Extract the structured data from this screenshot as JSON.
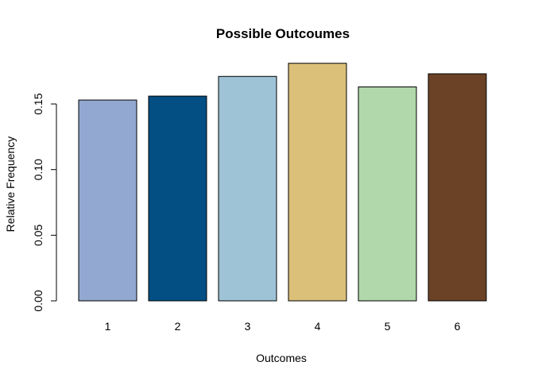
{
  "chart_data": {
    "type": "bar",
    "title": "Possible Outcoumes",
    "xlabel": "Outcomes",
    "ylabel": "Relative Frequency",
    "categories": [
      "1",
      "2",
      "3",
      "4",
      "5",
      "6"
    ],
    "values": [
      0.153,
      0.156,
      0.171,
      0.181,
      0.163,
      0.173
    ],
    "colors": [
      "#92A8D1",
      "#034F84",
      "#9EC2D6",
      "#DBC07A",
      "#B0D8AA",
      "#6B4226"
    ],
    "ylim": [
      0,
      0.18
    ],
    "yticks": [
      0.0,
      0.05,
      0.1,
      0.15
    ],
    "ytick_labels": [
      "0.00",
      "0.05",
      "0.10",
      "0.15"
    ],
    "grid": false,
    "legend": "none"
  }
}
